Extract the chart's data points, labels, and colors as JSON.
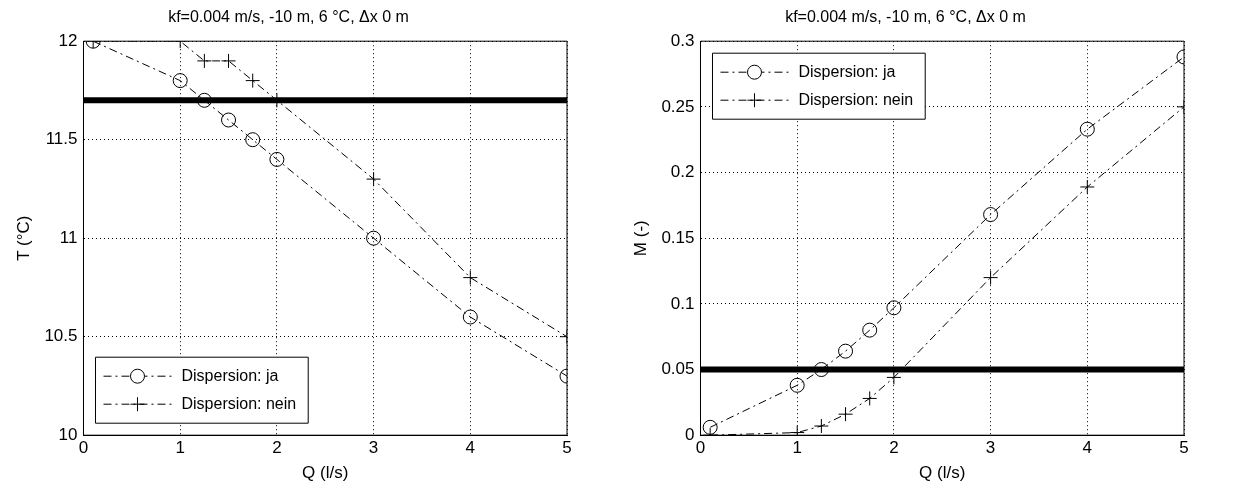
{
  "chart_data": [
    {
      "type": "line",
      "title": "kf=0.004 m/s, -10 m, 6 °C, Δx 0 m",
      "xlabel": "Q (l/s)",
      "ylabel": "T (°C)",
      "xlim": [
        0,
        5
      ],
      "xticks": [
        0,
        1,
        2,
        3,
        4,
        5
      ],
      "ylim": [
        10,
        12
      ],
      "yticks": [
        10,
        10.5,
        11,
        11.5,
        12
      ],
      "grid": true,
      "legend": "bottom left",
      "line_style": "dashed",
      "series": [
        {
          "name": "Dispersion: ja",
          "color": "#000000",
          "marker": "circle",
          "x": [
            0.1,
            1,
            1.25,
            1.5,
            1.75,
            2,
            3,
            4,
            5
          ],
          "values": [
            12,
            11.8,
            11.7,
            11.6,
            11.5,
            11.4,
            11.0,
            10.6,
            10.3
          ]
        },
        {
          "name": "Dispersion: nein",
          "color": "#000000",
          "marker": "cross",
          "x": [
            0.1,
            1,
            1.25,
            1.5,
            1.75,
            2,
            3,
            4,
            5
          ],
          "values": [
            12,
            12,
            11.9,
            11.9,
            11.8,
            11.7,
            11.3,
            10.8,
            10.5
          ]
        }
      ],
      "ref_lines": [
        {
          "axis": "y",
          "value": 11.7,
          "color": "#000000"
        }
      ]
    },
    {
      "type": "line",
      "title": "kf=0.004 m/s, -10 m, 6 °C, Δx 0 m",
      "xlabel": "Q (l/s)",
      "ylabel": "M (-)",
      "xlim": [
        0,
        5
      ],
      "xticks": [
        0,
        1,
        2,
        3,
        4,
        5
      ],
      "ylim": [
        0,
        0.3
      ],
      "yticks": [
        0,
        0.05,
        0.1,
        0.15,
        0.2,
        0.25,
        0.3
      ],
      "grid": true,
      "legend": "top left",
      "line_style": "dashed",
      "series": [
        {
          "name": "Dispersion: ja",
          "color": "#000000",
          "marker": "circle",
          "x": [
            0.1,
            1,
            1.25,
            1.5,
            1.75,
            2,
            3,
            4,
            5
          ],
          "values": [
            0.006,
            0.038,
            0.05,
            0.064,
            0.08,
            0.097,
            0.168,
            0.233,
            0.288
          ]
        },
        {
          "name": "Dispersion: nein",
          "color": "#000000",
          "marker": "cross",
          "x": [
            0.1,
            1,
            1.25,
            1.5,
            1.75,
            2,
            3,
            4,
            5
          ],
          "values": [
            0,
            0.002,
            0.007,
            0.016,
            0.028,
            0.044,
            0.12,
            0.189,
            0.25
          ]
        }
      ],
      "ref_lines": [
        {
          "axis": "y",
          "value": 0.05,
          "color": "#000000"
        }
      ]
    }
  ]
}
